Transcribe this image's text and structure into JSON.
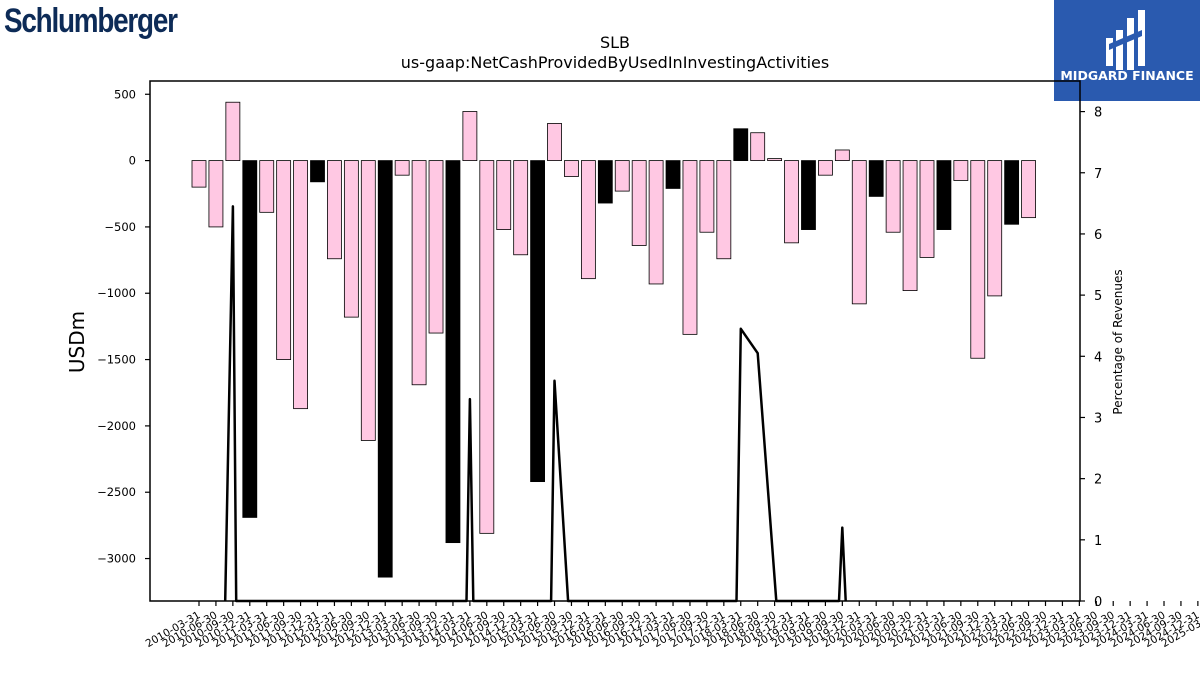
{
  "logos": {
    "left_text": "Schlumberger",
    "right_text": "MIDGARD FINANCE",
    "right_bg": "#2a5aaf"
  },
  "chart_data": {
    "type": "bar",
    "title": "SLB",
    "subtitle": "us-gaap:NetCashProvidedByUsedInInvestingActivities",
    "ylabel": "USDm",
    "y2label": "Percentage of Revenues",
    "ylim": [
      -3320,
      600
    ],
    "y2lim": [
      0,
      8.5
    ],
    "yticks": [
      500,
      0,
      -500,
      -1000,
      -1500,
      -2000,
      -2500,
      -3000
    ],
    "y2ticks": [
      0,
      1,
      2,
      3,
      4,
      5,
      6,
      7,
      8
    ],
    "grid": false,
    "colors": {
      "q_bar": "#ffc8e3",
      "annual_bar": "#000000",
      "line": "#000000"
    },
    "categories": [
      "2010-03-31",
      "2010-06-30",
      "2010-09-30",
      "2010-12-31",
      "2011-03-31",
      "2011-06-30",
      "2011-09-30",
      "2011-12-31",
      "2012-03-31",
      "2012-06-30",
      "2012-09-30",
      "2012-12-31",
      "2013-03-31",
      "2013-06-30",
      "2013-09-30",
      "2013-12-31",
      "2014-03-31",
      "2014-06-30",
      "2014-09-30",
      "2014-12-31",
      "2015-03-31",
      "2015-06-30",
      "2015-09-30",
      "2015-12-31",
      "2016-03-31",
      "2016-06-30",
      "2016-09-30",
      "2016-12-31",
      "2017-03-31",
      "2017-06-30",
      "2017-09-30",
      "2017-12-31",
      "2018-03-31",
      "2018-06-30",
      "2018-09-30",
      "2018-12-31",
      "2019-03-31",
      "2019-06-30",
      "2019-09-30",
      "2019-12-31",
      "2020-03-31",
      "2020-06-30",
      "2020-09-30",
      "2020-12-31",
      "2021-03-31",
      "2021-06-30",
      "2021-09-30",
      "2021-12-31",
      "2022-03-31",
      "2022-06-30",
      "2022-09-30",
      "2022-12-31",
      "2023-03-31",
      "2023-06-30",
      "2023-09-30",
      "2023-12-31",
      "2024-03-31",
      "2024-06-30",
      "2024-09-30",
      "2024-12-31",
      "2025-03-31"
    ],
    "bars": [
      {
        "x": 0,
        "value": -200,
        "annual": false
      },
      {
        "x": 1,
        "value": -500,
        "annual": false
      },
      {
        "x": 2,
        "value": 440,
        "annual": false
      },
      {
        "x": 3,
        "value": -2690,
        "annual": true
      },
      {
        "x": 4,
        "value": -390,
        "annual": false
      },
      {
        "x": 5,
        "value": -1500,
        "annual": false
      },
      {
        "x": 6,
        "value": -1870,
        "annual": false
      },
      {
        "x": 7,
        "value": -160,
        "annual": true
      },
      {
        "x": 8,
        "value": -740,
        "annual": false
      },
      {
        "x": 9,
        "value": -1180,
        "annual": false
      },
      {
        "x": 10,
        "value": -2110,
        "annual": false
      },
      {
        "x": 11,
        "value": -3140,
        "annual": true
      },
      {
        "x": 12,
        "value": -110,
        "annual": false
      },
      {
        "x": 13,
        "value": -1690,
        "annual": false
      },
      {
        "x": 14,
        "value": -1300,
        "annual": false
      },
      {
        "x": 15,
        "value": -2880,
        "annual": true
      },
      {
        "x": 16,
        "value": 370,
        "annual": false
      },
      {
        "x": 17,
        "value": -2810,
        "annual": false
      },
      {
        "x": 18,
        "value": -520,
        "annual": false
      },
      {
        "x": 19,
        "value": -710,
        "annual": false
      },
      {
        "x": 20,
        "value": -2420,
        "annual": true
      },
      {
        "x": 21,
        "value": 280,
        "annual": false
      },
      {
        "x": 22,
        "value": -120,
        "annual": false
      },
      {
        "x": 23,
        "value": -890,
        "annual": false
      },
      {
        "x": 24,
        "value": -320,
        "annual": true
      },
      {
        "x": 25,
        "value": -230,
        "annual": false
      },
      {
        "x": 26,
        "value": -640,
        "annual": false
      },
      {
        "x": 27,
        "value": -930,
        "annual": false
      },
      {
        "x": 28,
        "value": -210,
        "annual": true
      },
      {
        "x": 29,
        "value": -1310,
        "annual": false
      },
      {
        "x": 30,
        "value": -540,
        "annual": false
      },
      {
        "x": 31,
        "value": -740,
        "annual": false
      },
      {
        "x": 32,
        "value": 240,
        "annual": true
      },
      {
        "x": 33,
        "value": 210,
        "annual": false
      },
      {
        "x": 34,
        "value": 15,
        "annual": false
      },
      {
        "x": 35,
        "value": -620,
        "annual": false
      },
      {
        "x": 36,
        "value": -520,
        "annual": true
      },
      {
        "x": 37,
        "value": -110,
        "annual": false
      },
      {
        "x": 38,
        "value": 80,
        "annual": false
      },
      {
        "x": 39,
        "value": -1080,
        "annual": false
      },
      {
        "x": 40,
        "value": -270,
        "annual": true
      },
      {
        "x": 41,
        "value": -540,
        "annual": false
      },
      {
        "x": 42,
        "value": -980,
        "annual": false
      },
      {
        "x": 43,
        "value": -730,
        "annual": false
      },
      {
        "x": 44,
        "value": -520,
        "annual": true
      },
      {
        "x": 45,
        "value": -150,
        "annual": false
      },
      {
        "x": 46,
        "value": -1490,
        "annual": false
      },
      {
        "x": 47,
        "value": -1020,
        "annual": false
      },
      {
        "x": 48,
        "value": -480,
        "annual": true
      },
      {
        "x": 49,
        "value": -430,
        "annual": false
      }
    ],
    "line_pct": [
      {
        "x": 1.55,
        "y": 0
      },
      {
        "x": 2,
        "y": 6.45
      },
      {
        "x": 2.2,
        "y": 0
      },
      {
        "x": 15.8,
        "y": 0
      },
      {
        "x": 16,
        "y": 3.3
      },
      {
        "x": 16.2,
        "y": 0
      },
      {
        "x": 20.8,
        "y": 0
      },
      {
        "x": 21,
        "y": 3.6
      },
      {
        "x": 21.8,
        "y": 0
      },
      {
        "x": 31.75,
        "y": 0
      },
      {
        "x": 32,
        "y": 4.45
      },
      {
        "x": 33,
        "y": 4.05
      },
      {
        "x": 34.1,
        "y": 0
      },
      {
        "x": 37.8,
        "y": 0
      },
      {
        "x": 38,
        "y": 1.2
      },
      {
        "x": 38.2,
        "y": 0
      }
    ]
  }
}
